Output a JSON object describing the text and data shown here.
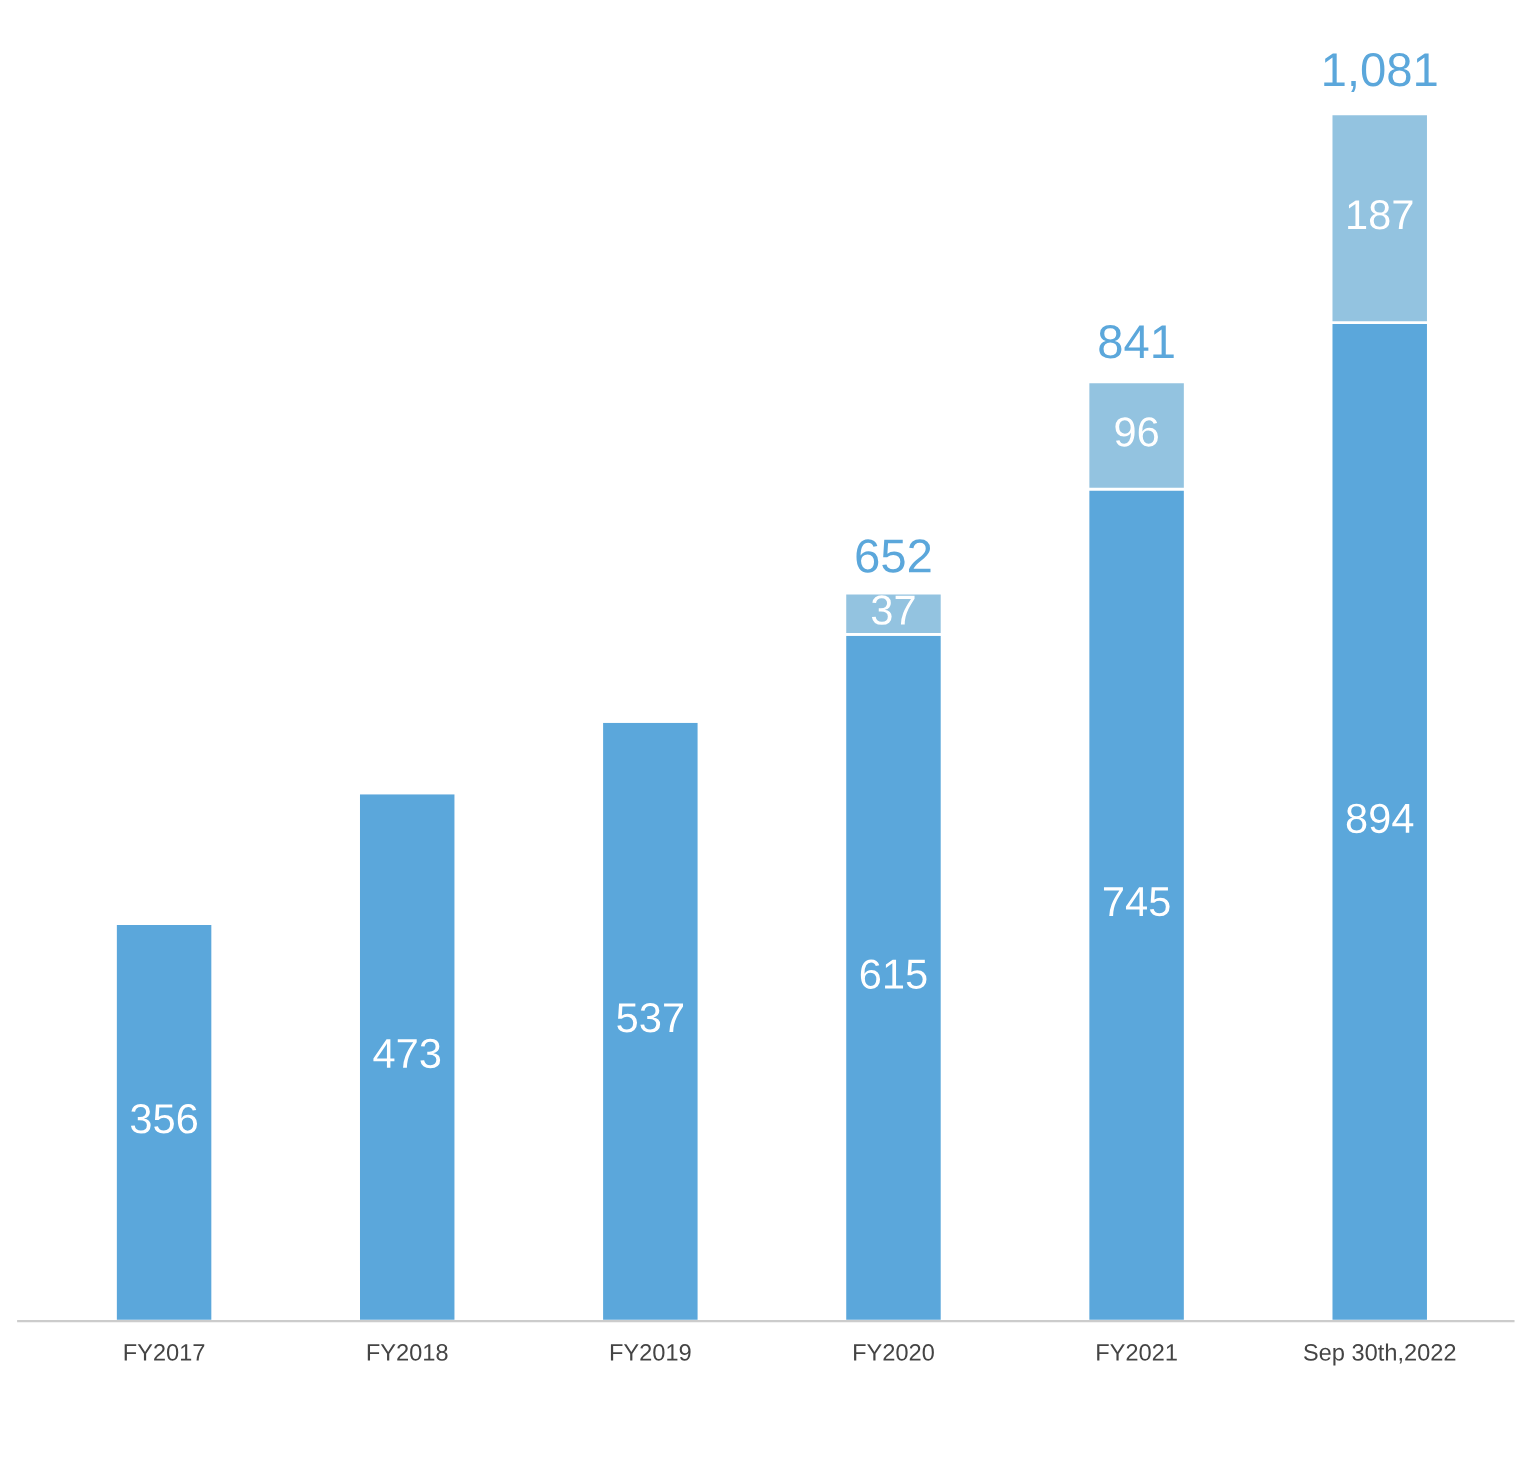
{
  "chart_data": {
    "type": "bar",
    "stacked": true,
    "data_labels": true,
    "categories": [
      "FY2017",
      "FY2018",
      "FY2019",
      "FY2020",
      "FY2021",
      "Sep 30th,2022"
    ],
    "series": [
      {
        "color": "#5ba7db",
        "values": [
          356,
          473,
          537,
          615,
          745,
          894
        ]
      },
      {
        "color": "#93c3e0",
        "values": [
          null,
          null,
          null,
          37,
          96,
          187
        ]
      }
    ],
    "totals": [
      null,
      null,
      null,
      "652",
      "841",
      "1,081"
    ]
  }
}
